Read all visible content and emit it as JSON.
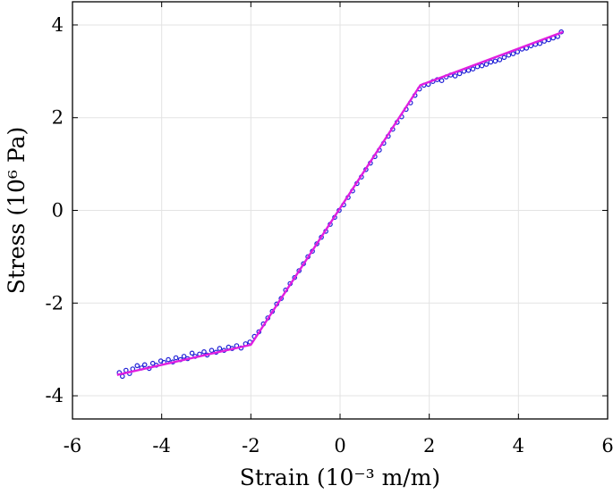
{
  "chart_data": {
    "type": "scatter",
    "xlabel": "Strain (10⁻³ m/m)",
    "ylabel": "Stress (10⁶ Pa)",
    "xlim": [
      -6,
      6
    ],
    "ylim": [
      -4.5,
      4.5
    ],
    "xticks": [
      -6,
      -4,
      -2,
      0,
      2,
      4,
      6
    ],
    "yticks": [
      -4,
      -2,
      0,
      2,
      4
    ],
    "xtick_labels": [
      "-6",
      "-4",
      "-2",
      "0",
      "2",
      "4",
      "6"
    ],
    "ytick_labels": [
      "-4",
      "-2",
      "0",
      "2",
      "4"
    ],
    "grid": true,
    "series": [
      {
        "kind": "markers",
        "color": "#1f1fd6",
        "x": [
          -4.95,
          -4.88,
          -4.8,
          -4.72,
          -4.65,
          -4.55,
          -4.45,
          -4.38,
          -4.28,
          -4.2,
          -4.12,
          -4.02,
          -3.95,
          -3.85,
          -3.75,
          -3.68,
          -3.58,
          -3.5,
          -3.42,
          -3.32,
          -3.25,
          -3.15,
          -3.05,
          -2.98,
          -2.88,
          -2.78,
          -2.7,
          -2.6,
          -2.5,
          -2.42,
          -2.32,
          -2.22,
          -2.12,
          -2.02,
          -1.92,
          -1.82,
          -1.72,
          -1.62,
          -1.52,
          -1.42,
          -1.32,
          -1.22,
          -1.12,
          -1.02,
          -0.92,
          -0.82,
          -0.72,
          -0.62,
          -0.52,
          -0.42,
          -0.32,
          -0.22,
          -0.12,
          -0.02,
          0.08,
          0.18,
          0.28,
          0.38,
          0.48,
          0.58,
          0.68,
          0.78,
          0.88,
          0.98,
          1.08,
          1.18,
          1.28,
          1.38,
          1.48,
          1.58,
          1.68,
          1.78,
          1.88,
          1.98,
          2.08,
          2.18,
          2.28,
          2.38,
          2.48,
          2.58,
          2.68,
          2.78,
          2.88,
          2.98,
          3.08,
          3.18,
          3.28,
          3.38,
          3.48,
          3.58,
          3.68,
          3.78,
          3.88,
          3.98,
          4.08,
          4.18,
          4.28,
          4.38,
          4.48,
          4.58,
          4.68,
          4.78,
          4.88,
          4.96
        ],
        "y": [
          -3.5,
          -3.58,
          -3.45,
          -3.52,
          -3.42,
          -3.35,
          -3.4,
          -3.33,
          -3.41,
          -3.3,
          -3.34,
          -3.25,
          -3.28,
          -3.22,
          -3.27,
          -3.18,
          -3.22,
          -3.15,
          -3.2,
          -3.08,
          -3.15,
          -3.1,
          -3.05,
          -3.12,
          -3.02,
          -3.06,
          -2.98,
          -3.02,
          -2.95,
          -2.98,
          -2.92,
          -2.97,
          -2.88,
          -2.84,
          -2.72,
          -2.62,
          -2.45,
          -2.32,
          -2.18,
          -2.02,
          -1.9,
          -1.72,
          -1.58,
          -1.45,
          -1.3,
          -1.15,
          -1.0,
          -0.88,
          -0.72,
          -0.58,
          -0.45,
          -0.3,
          -0.15,
          0.0,
          0.12,
          0.28,
          0.42,
          0.58,
          0.72,
          0.88,
          1.02,
          1.16,
          1.3,
          1.45,
          1.6,
          1.75,
          1.9,
          2.02,
          2.18,
          2.32,
          2.48,
          2.62,
          2.7,
          2.72,
          2.78,
          2.82,
          2.8,
          2.88,
          2.92,
          2.9,
          2.95,
          3.0,
          3.02,
          3.05,
          3.1,
          3.12,
          3.15,
          3.2,
          3.22,
          3.25,
          3.3,
          3.35,
          3.38,
          3.42,
          3.48,
          3.5,
          3.55,
          3.58,
          3.6,
          3.65,
          3.68,
          3.72,
          3.75,
          3.85
        ]
      },
      {
        "kind": "fit-line",
        "color": "#e01fe0",
        "x": [
          -5,
          -2,
          1.8,
          5
        ],
        "y": [
          -3.55,
          -2.9,
          2.7,
          3.85
        ]
      }
    ]
  }
}
